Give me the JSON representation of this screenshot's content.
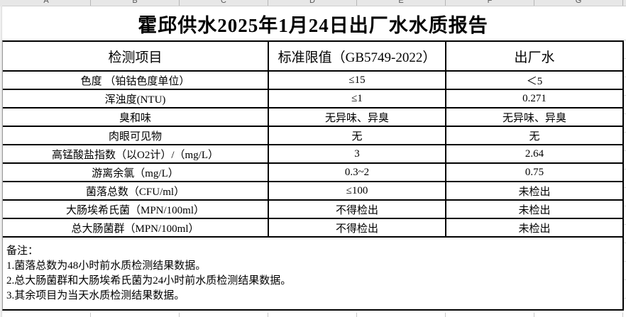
{
  "sheet": {
    "column_letters": [
      "A",
      "B",
      "C",
      "D",
      "E",
      "F",
      "G"
    ]
  },
  "title": "霍邱供水2025年1月24日出厂水水质报告",
  "table": {
    "headers": {
      "item": "检测项目",
      "standard": "标准限值（GB5749-2022）",
      "factory": "出厂水"
    },
    "rows": [
      {
        "item": "色度 （铂钴色度单位）",
        "standard": "≤15",
        "factory": "＜5"
      },
      {
        "item": "浑浊度(NTU)",
        "standard": "≤1",
        "factory": "0.271"
      },
      {
        "item": "臭和味",
        "standard": "无异味、异臭",
        "factory": "无异味、异臭"
      },
      {
        "item": "肉眼可见物",
        "standard": "无",
        "factory": "无"
      },
      {
        "item": "高锰酸盐指数（以O2计）/（mg/L）",
        "standard": "3",
        "factory": "2.64"
      },
      {
        "item": "游离余氯（mg/L）",
        "standard": "0.3~2",
        "factory": "0.75"
      },
      {
        "item": "菌落总数（CFU/ml）",
        "standard": "≤100",
        "factory": "未检出"
      },
      {
        "item": "大肠埃希氏菌（MPN/100ml）",
        "standard": "不得检出",
        "factory": "未检出"
      },
      {
        "item": "总大肠菌群（MPN/100ml）",
        "standard": "不得检出",
        "factory": "未检出"
      }
    ]
  },
  "notes": {
    "label": "备注：",
    "items": [
      "1.菌落总数为48小时前水质检测结果数据。",
      "2.总大肠菌群和大肠埃希氏菌为24小时前水质检测结果数据。",
      "3.其余项目为当天水质检测结果数据。"
    ]
  },
  "colors": {
    "border": "#000000",
    "gridline": "#c9c9c9",
    "header_strip_bg": "#e7e7e7"
  }
}
